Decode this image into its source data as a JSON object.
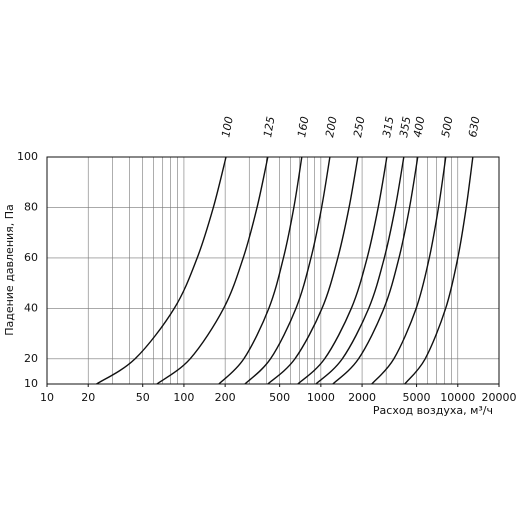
{
  "chart_data": {
    "type": "line",
    "x_label": "Расход воздуха, м³/ч",
    "y_label": "Падение давления, Па",
    "log_x": true,
    "grid": true,
    "color": "#111111",
    "xlim": [
      10,
      20000
    ],
    "ylim": [
      10,
      100
    ],
    "xticks": [
      10,
      20,
      50,
      100,
      200,
      500,
      1000,
      2000,
      5000,
      10000,
      20000
    ],
    "xgrid": [
      20,
      30,
      40,
      50,
      60,
      70,
      80,
      90,
      100,
      200,
      300,
      400,
      500,
      600,
      700,
      800,
      900,
      1000,
      2000,
      3000,
      4000,
      5000,
      6000,
      7000,
      8000,
      9000,
      10000,
      20000
    ],
    "yticks": [
      10,
      20,
      40,
      60,
      80,
      100
    ],
    "series": [
      {
        "name": "100",
        "x": [
          23,
          44,
          85,
          125,
          164,
          203
        ],
        "values": [
          10,
          20,
          40,
          60,
          80,
          100
        ]
      },
      {
        "name": "125",
        "x": [
          63.5,
          111,
          195,
          271,
          342,
          410
        ],
        "values": [
          10,
          20,
          40,
          60,
          80,
          100
        ]
      },
      {
        "name": "160",
        "x": [
          180,
          274,
          417,
          533,
          635,
          726
        ],
        "values": [
          10,
          20,
          40,
          60,
          80,
          100
        ]
      },
      {
        "name": "200",
        "x": [
          279,
          429,
          658,
          847,
          1013,
          1164
        ],
        "values": [
          10,
          20,
          40,
          60,
          80,
          100
        ]
      },
      {
        "name": "250",
        "x": [
          410,
          647,
          1020,
          1330,
          1607,
          1862
        ],
        "values": [
          10,
          20,
          40,
          60,
          80,
          100
        ]
      },
      {
        "name": "315",
        "x": [
          679,
          1066,
          1670,
          2178,
          2623,
          3034
        ],
        "values": [
          10,
          20,
          40,
          60,
          80,
          100
        ]
      },
      {
        "name": "355",
        "x": [
          920,
          1435,
          2236,
          2907,
          3496,
          4035
        ],
        "values": [
          10,
          20,
          40,
          60,
          80,
          100
        ]
      },
      {
        "name": "400",
        "x": [
          1224,
          1885,
          2889,
          3721,
          4443,
          5100
        ],
        "values": [
          10,
          20,
          40,
          60,
          80,
          100
        ]
      },
      {
        "name": "500",
        "x": [
          2355,
          3415,
          4969,
          6194,
          7230,
          8170
        ],
        "values": [
          10,
          20,
          40,
          60,
          80,
          100
        ]
      },
      {
        "name": "630",
        "x": [
          4100,
          5781,
          8159,
          10004,
          11521,
          12880
        ],
        "values": [
          10,
          20,
          40,
          60,
          80,
          100
        ]
      }
    ]
  }
}
